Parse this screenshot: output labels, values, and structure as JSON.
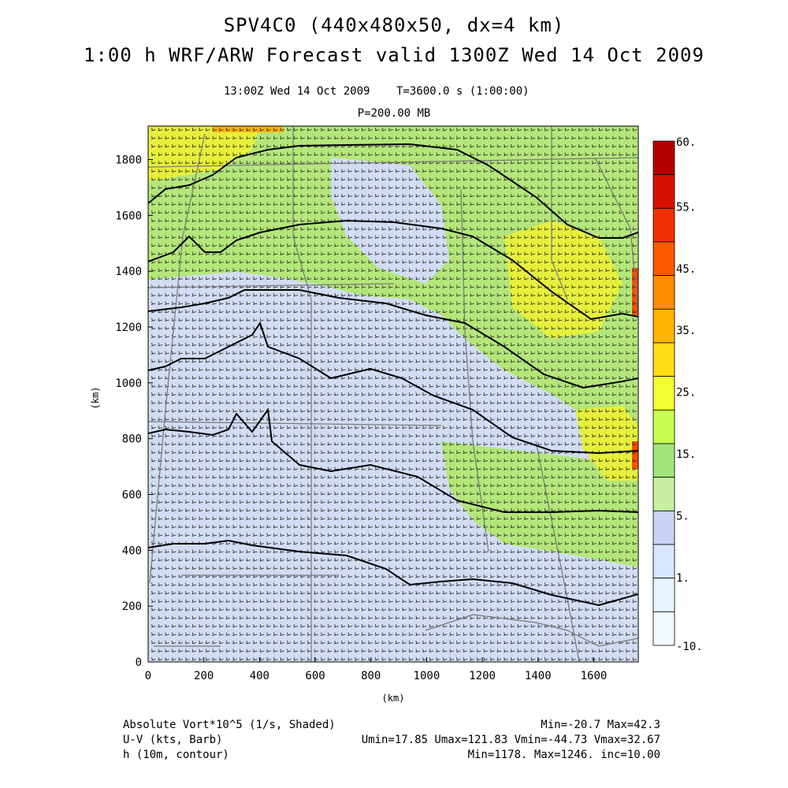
{
  "header": {
    "title_line1": "SPV4C0 (440x480x50, dx=4 km)",
    "title_line2": "1:00 h WRF/ARW Forecast valid 1300Z Wed 14 Oct 2009",
    "valid_time": "13:00Z Wed 14 Oct 2009",
    "elapsed": "T=3600.0 s (1:00:00)",
    "level": "P=200.00 MB"
  },
  "axes": {
    "x_label": "(km)",
    "y_label": "(km)",
    "x_ticks": [
      "0",
      "200",
      "400",
      "600",
      "800",
      "1000",
      "1200",
      "1400",
      "1600"
    ],
    "y_ticks": [
      "0",
      "200",
      "400",
      "600",
      "800",
      "1000",
      "1200",
      "1400",
      "1600",
      "1800"
    ],
    "x_range": [
      0,
      1760
    ],
    "y_range": [
      0,
      1920
    ]
  },
  "colorbar": {
    "labels": [
      "60.",
      "55.",
      "45.",
      "35.",
      "25.",
      "15.",
      "5.",
      "1.",
      "-10."
    ],
    "colors": [
      "#b40000",
      "#d81000",
      "#f03000",
      "#ff5a00",
      "#ff8c00",
      "#ffb400",
      "#ffdc14",
      "#f0ff32",
      "#c8ff50",
      "#a0e678",
      "#c8f0a0",
      "#c8d2f5",
      "#d8e6ff",
      "#e6f5ff",
      "#f0faff"
    ]
  },
  "field": {
    "colors": {
      "base": "#d2dcf2",
      "green": "#b4e67a",
      "yellow": "#e6f03c",
      "orange": "#ffb400",
      "red": "#ff5000",
      "barb": "#202020",
      "contour": "#000000",
      "border": "#787878"
    }
  },
  "footer": {
    "line1_left": "Absolute Vort*10^5 (1/s, Shaded)",
    "line1_right": "Min=-20.7 Max=42.3",
    "line2_left": "U-V (kts, Barb)",
    "line2_right": "Umin=17.85 Umax=121.83 Vmin=-44.73 Vmax=32.67",
    "line3_left": "h (10m, contour)",
    "line3_right": "Min=1178. Max=1246. inc=10.00"
  }
}
